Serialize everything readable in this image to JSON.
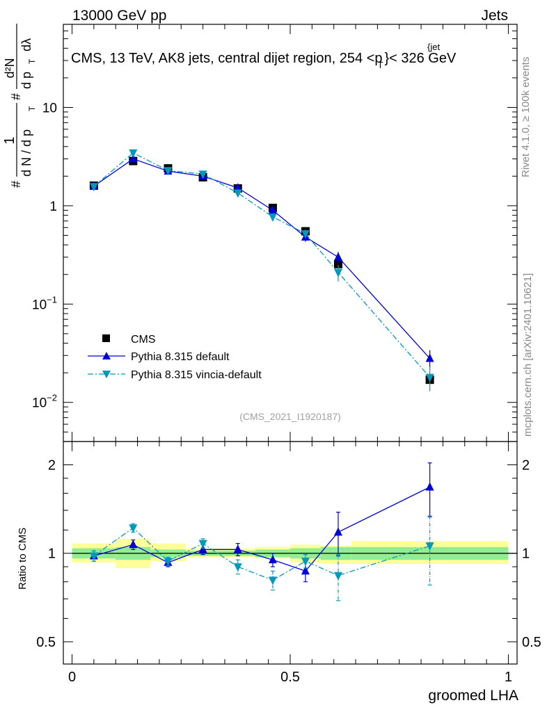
{
  "header": {
    "beam": "13000 GeV pp",
    "process": "Jets",
    "plot_title": "CMS, 13 TeV, AK8 jets, central dijet region, 254 <p",
    "plot_title_sup": "{jet",
    "plot_title_sub": "T",
    "plot_title_tail": "}< 326 GeV",
    "side_label_top": "Rivet 4.1.0, ≥ 100k events",
    "side_label_bottom": "mcplots.cern.ch [arXiv:2401.10621]",
    "analysis_id": "(CMS_2021_I1920187)"
  },
  "chart_data": [
    {
      "type": "scatter",
      "panel": "main",
      "ylabel_parts": [
        "#",
        "1",
        "d N / d p",
        "T",
        "#",
        "d²N",
        "d p",
        "T",
        "dλ"
      ],
      "yscale": "log",
      "ylim": [
        0.004,
        70
      ],
      "yticks": [
        {
          "value": 0.01,
          "base": "10",
          "exp": "−2"
        },
        {
          "value": 0.1,
          "base": "10",
          "exp": "−1"
        },
        {
          "value": 1,
          "base": "1",
          "exp": ""
        },
        {
          "value": 10,
          "base": "10",
          "exp": ""
        }
      ],
      "xlim": [
        -0.02,
        1.02
      ],
      "legend": {
        "position": "bottom-left",
        "entries": [
          "CMS",
          "Pythia 8.315 default",
          "Pythia 8.315 vincia-default"
        ]
      },
      "series": [
        {
          "name": "CMS",
          "color": "#000000",
          "marker": "square",
          "x": [
            0.05,
            0.14,
            0.22,
            0.3,
            0.38,
            0.46,
            0.535,
            0.61,
            0.82
          ],
          "values": [
            1.6,
            2.85,
            2.4,
            1.95,
            1.5,
            0.95,
            0.55,
            0.255,
            0.017
          ]
        },
        {
          "name": "Pythia 8.315 default",
          "color": "#0000dd",
          "marker": "triangle-up",
          "line": "solid",
          "x": [
            0.05,
            0.14,
            0.22,
            0.3,
            0.38,
            0.46,
            0.535,
            0.61,
            0.82
          ],
          "values": [
            1.58,
            3.0,
            2.25,
            2.0,
            1.52,
            0.9,
            0.48,
            0.3,
            0.028
          ],
          "err_up": [
            0.06,
            0.12,
            0.08,
            0.07,
            0.06,
            0.05,
            0.05,
            0.04,
            0.006
          ]
        },
        {
          "name": "Pythia 8.315 vincia-default",
          "color": "#0099bb",
          "marker": "triangle-down",
          "line": "dashdot",
          "x": [
            0.05,
            0.14,
            0.22,
            0.3,
            0.38,
            0.46,
            0.535,
            0.61,
            0.82
          ],
          "values": [
            1.57,
            3.45,
            2.28,
            2.1,
            1.35,
            0.77,
            0.52,
            0.21,
            0.018
          ],
          "err_up": [
            0.06,
            0.14,
            0.08,
            0.08,
            0.06,
            0.06,
            0.05,
            0.04,
            0.005
          ]
        }
      ]
    },
    {
      "type": "scatter",
      "panel": "ratio",
      "ylabel": "Ratio to CMS",
      "yscale": "log",
      "ylim": [
        0.42,
        2.4
      ],
      "yticks": [
        {
          "value": 0.5,
          "label": "0.5"
        },
        {
          "value": 1,
          "label": "1"
        },
        {
          "value": 2,
          "label": "2"
        }
      ],
      "xlim": [
        -0.02,
        1.02
      ],
      "xlabel": "groomed LHA",
      "xticks": [
        {
          "value": 0,
          "label": "0"
        },
        {
          "value": 0.5,
          "label": "0.5"
        },
        {
          "value": 1,
          "label": "1"
        }
      ],
      "bands": {
        "edges": [
          0.0,
          0.1,
          0.18,
          0.26,
          0.34,
          0.42,
          0.5,
          0.57,
          0.64,
          1.0
        ],
        "stat_lo": [
          0.96,
          0.95,
          0.97,
          0.98,
          0.98,
          0.97,
          0.96,
          0.95,
          0.95
        ],
        "stat_hi": [
          1.04,
          1.05,
          1.03,
          1.02,
          1.02,
          1.03,
          1.04,
          1.05,
          1.05
        ],
        "total_lo": [
          0.93,
          0.89,
          0.94,
          0.97,
          0.97,
          0.96,
          0.93,
          0.92,
          0.92
        ],
        "total_hi": [
          1.08,
          1.12,
          1.08,
          1.04,
          1.04,
          1.05,
          1.07,
          1.06,
          1.1
        ],
        "stat_color": "#90ee90",
        "total_color": "#ffff99"
      },
      "series": [
        {
          "name": "Pythia 8.315 default",
          "color": "#0000dd",
          "marker": "triangle-up",
          "line": "solid",
          "x": [
            0.05,
            0.14,
            0.22,
            0.3,
            0.38,
            0.46,
            0.535,
            0.61,
            0.82
          ],
          "values": [
            0.98,
            1.07,
            0.93,
            1.03,
            1.03,
            0.95,
            0.87,
            1.18,
            1.68
          ],
          "err": [
            0.04,
            0.04,
            0.03,
            0.04,
            0.05,
            0.05,
            0.07,
            0.2,
            0.35
          ]
        },
        {
          "name": "Pythia 8.315 vincia-default",
          "color": "#0099bb",
          "marker": "triangle-down",
          "line": "dashdot",
          "x": [
            0.05,
            0.14,
            0.22,
            0.3,
            0.38,
            0.46,
            0.535,
            0.61,
            0.82
          ],
          "values": [
            0.98,
            1.22,
            0.94,
            1.08,
            0.9,
            0.81,
            0.94,
            0.84,
            1.06
          ],
          "err": [
            0.04,
            0.04,
            0.03,
            0.04,
            0.05,
            0.06,
            0.05,
            0.15,
            0.28
          ]
        }
      ]
    }
  ]
}
